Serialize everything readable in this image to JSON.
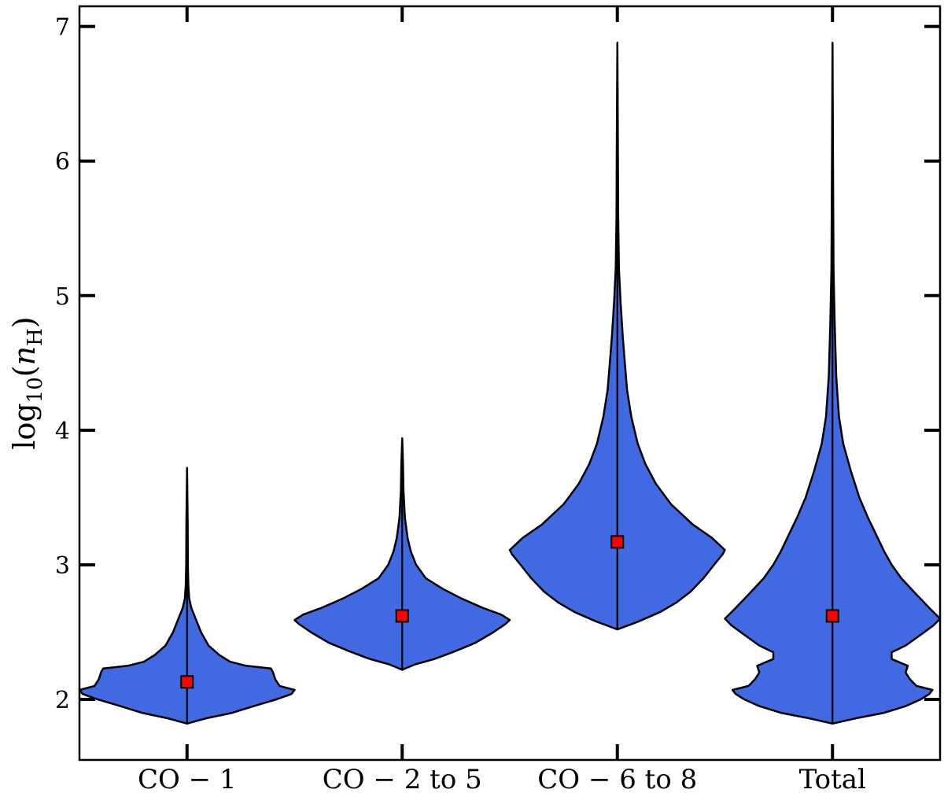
{
  "chart_data": {
    "type": "violin",
    "title": "",
    "xlabel": "",
    "ylabel": "log10(nH)",
    "ylabel_parts": {
      "main": "log",
      "sub": "10",
      "paren_open": "(",
      "var": "n",
      "var_sub": "H",
      "paren_close": ")"
    },
    "ylim": [
      1.55,
      7.15
    ],
    "yticks": [
      2,
      3,
      4,
      5,
      6,
      7
    ],
    "grid": false,
    "legend": "none",
    "categories": [
      "CO − 1",
      "CO − 2 to 5",
      "CO − 6 to 8",
      "Total"
    ],
    "colors": {
      "fill": "#4169e1",
      "edge": "#000000",
      "marker": "#ff0000",
      "axis": "#000000"
    },
    "median_marker": "red-square",
    "violins": [
      {
        "category": "CO − 1",
        "median": 2.13,
        "min": 1.82,
        "max": 3.72,
        "profile": [
          [
            1.82,
            0
          ],
          [
            1.86,
            0.18
          ],
          [
            1.9,
            0.42
          ],
          [
            1.95,
            0.62
          ],
          [
            2.0,
            0.83
          ],
          [
            2.04,
            0.97
          ],
          [
            2.07,
            1.0
          ],
          [
            2.1,
            0.86
          ],
          [
            2.15,
            0.82
          ],
          [
            2.2,
            0.8
          ],
          [
            2.23,
            0.78
          ],
          [
            2.25,
            0.55
          ],
          [
            2.28,
            0.4
          ],
          [
            2.33,
            0.3
          ],
          [
            2.4,
            0.2
          ],
          [
            2.5,
            0.13
          ],
          [
            2.6,
            0.08
          ],
          [
            2.68,
            0.04
          ],
          [
            2.75,
            0.02
          ],
          [
            2.85,
            0.012
          ],
          [
            3.0,
            0.008
          ],
          [
            3.3,
            0.006
          ],
          [
            3.72,
            0
          ]
        ]
      },
      {
        "category": "CO − 2 to 5",
        "median": 2.62,
        "min": 2.22,
        "max": 3.94,
        "profile": [
          [
            2.22,
            0
          ],
          [
            2.26,
            0.12
          ],
          [
            2.3,
            0.3
          ],
          [
            2.36,
            0.5
          ],
          [
            2.42,
            0.68
          ],
          [
            2.5,
            0.85
          ],
          [
            2.56,
            0.96
          ],
          [
            2.59,
            1.0
          ],
          [
            2.63,
            0.92
          ],
          [
            2.68,
            0.75
          ],
          [
            2.75,
            0.55
          ],
          [
            2.82,
            0.38
          ],
          [
            2.9,
            0.22
          ],
          [
            3.0,
            0.13
          ],
          [
            3.1,
            0.08
          ],
          [
            3.2,
            0.05
          ],
          [
            3.35,
            0.025
          ],
          [
            3.55,
            0.012
          ],
          [
            3.75,
            0.008
          ],
          [
            3.94,
            0
          ]
        ]
      },
      {
        "category": "CO − 6 to 8",
        "median": 3.17,
        "min": 2.52,
        "max": 6.88,
        "profile": [
          [
            2.52,
            0
          ],
          [
            2.58,
            0.2
          ],
          [
            2.65,
            0.4
          ],
          [
            2.72,
            0.55
          ],
          [
            2.8,
            0.68
          ],
          [
            2.9,
            0.8
          ],
          [
            3.0,
            0.9
          ],
          [
            3.08,
            0.98
          ],
          [
            3.11,
            1.0
          ],
          [
            3.2,
            0.88
          ],
          [
            3.3,
            0.7
          ],
          [
            3.45,
            0.5
          ],
          [
            3.6,
            0.36
          ],
          [
            3.75,
            0.26
          ],
          [
            3.9,
            0.19
          ],
          [
            4.1,
            0.13
          ],
          [
            4.3,
            0.09
          ],
          [
            4.5,
            0.07
          ],
          [
            4.7,
            0.05
          ],
          [
            4.95,
            0.03
          ],
          [
            5.2,
            0.015
          ],
          [
            5.6,
            0.008
          ],
          [
            6.2,
            0.005
          ],
          [
            6.88,
            0
          ]
        ]
      },
      {
        "category": "Total",
        "median": 2.62,
        "min": 1.82,
        "max": 6.88,
        "profile": [
          [
            1.82,
            0
          ],
          [
            1.86,
            0.22
          ],
          [
            1.9,
            0.48
          ],
          [
            1.95,
            0.68
          ],
          [
            2.0,
            0.82
          ],
          [
            2.04,
            0.9
          ],
          [
            2.07,
            0.93
          ],
          [
            2.1,
            0.78
          ],
          [
            2.15,
            0.72
          ],
          [
            2.2,
            0.68
          ],
          [
            2.25,
            0.7
          ],
          [
            2.3,
            0.55
          ],
          [
            2.35,
            0.55
          ],
          [
            2.4,
            0.68
          ],
          [
            2.48,
            0.82
          ],
          [
            2.55,
            0.94
          ],
          [
            2.6,
            1.0
          ],
          [
            2.68,
            0.9
          ],
          [
            2.78,
            0.78
          ],
          [
            2.9,
            0.64
          ],
          [
            3.0,
            0.55
          ],
          [
            3.1,
            0.48
          ],
          [
            3.2,
            0.42
          ],
          [
            3.35,
            0.33
          ],
          [
            3.5,
            0.25
          ],
          [
            3.7,
            0.17
          ],
          [
            3.9,
            0.1
          ],
          [
            4.1,
            0.06
          ],
          [
            4.4,
            0.035
          ],
          [
            4.8,
            0.02
          ],
          [
            5.2,
            0.01
          ],
          [
            6.0,
            0.005
          ],
          [
            6.88,
            0
          ]
        ]
      }
    ]
  }
}
